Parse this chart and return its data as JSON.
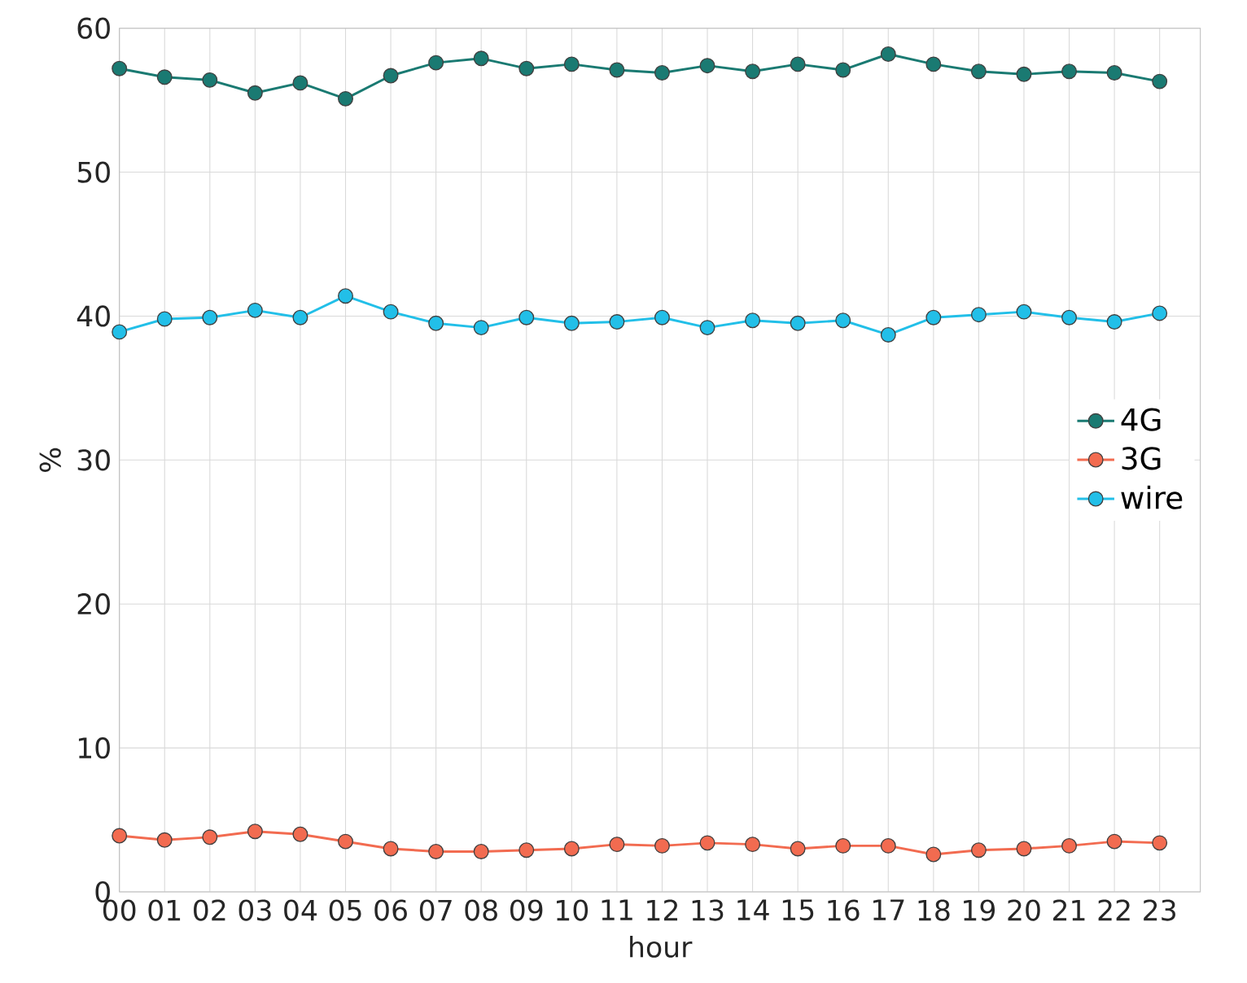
{
  "chart_data": {
    "type": "line",
    "xlabel": "hour",
    "ylabel": "%",
    "x": [
      0,
      1,
      2,
      3,
      4,
      5,
      6,
      7,
      8,
      9,
      10,
      11,
      12,
      13,
      14,
      15,
      16,
      17,
      18,
      19,
      20,
      21,
      22,
      23
    ],
    "series": [
      {
        "name": "4G",
        "color": "#1a7a72",
        "values": [
          57.2,
          56.6,
          56.4,
          55.5,
          56.2,
          55.1,
          56.7,
          57.6,
          57.9,
          57.2,
          57.5,
          57.1,
          56.9,
          57.4,
          57.0,
          57.5,
          57.1,
          58.2,
          57.5,
          57.0,
          56.8,
          57.0,
          56.9,
          56.3
        ]
      },
      {
        "name": "3G",
        "color": "#f26b50",
        "values": [
          3.9,
          3.6,
          3.8,
          4.2,
          4.0,
          3.5,
          3.0,
          2.8,
          2.8,
          2.9,
          3.0,
          3.3,
          3.2,
          3.4,
          3.3,
          3.0,
          3.2,
          3.2,
          2.6,
          2.9,
          3.0,
          3.2,
          3.5,
          3.4
        ]
      },
      {
        "name": "wire",
        "color": "#22bfe8",
        "values": [
          38.9,
          39.8,
          39.9,
          40.4,
          39.9,
          41.4,
          40.3,
          39.5,
          39.2,
          39.9,
          39.5,
          39.6,
          39.9,
          39.2,
          39.7,
          39.5,
          39.7,
          38.7,
          39.9,
          40.1,
          40.3,
          39.9,
          39.6,
          40.2
        ]
      }
    ],
    "xlim": [
      0,
      23.9
    ],
    "xticks": [
      {
        "value": 0,
        "label": "00"
      },
      {
        "value": 1,
        "label": "01"
      },
      {
        "value": 2,
        "label": "02"
      },
      {
        "value": 3,
        "label": "03"
      },
      {
        "value": 4,
        "label": "04"
      },
      {
        "value": 5,
        "label": "05"
      },
      {
        "value": 6,
        "label": "06"
      },
      {
        "value": 7,
        "label": "07"
      },
      {
        "value": 8,
        "label": "08"
      },
      {
        "value": 9,
        "label": "09"
      },
      {
        "value": 10,
        "label": "10"
      },
      {
        "value": 11,
        "label": "11"
      },
      {
        "value": 12,
        "label": "12"
      },
      {
        "value": 13,
        "label": "13"
      },
      {
        "value": 14,
        "label": "14"
      },
      {
        "value": 15,
        "label": "15"
      },
      {
        "value": 16,
        "label": "16"
      },
      {
        "value": 17,
        "label": "17"
      },
      {
        "value": 18,
        "label": "18"
      },
      {
        "value": 19,
        "label": "19"
      },
      {
        "value": 20,
        "label": "20"
      },
      {
        "value": 21,
        "label": "21"
      },
      {
        "value": 22,
        "label": "22"
      },
      {
        "value": 23,
        "label": "23"
      }
    ],
    "ylim": [
      0,
      60
    ],
    "yticks": [
      0,
      10,
      20,
      30,
      40,
      50,
      60
    ],
    "grid": true,
    "legend": "right",
    "marker": "circle",
    "line_style": "solid"
  }
}
